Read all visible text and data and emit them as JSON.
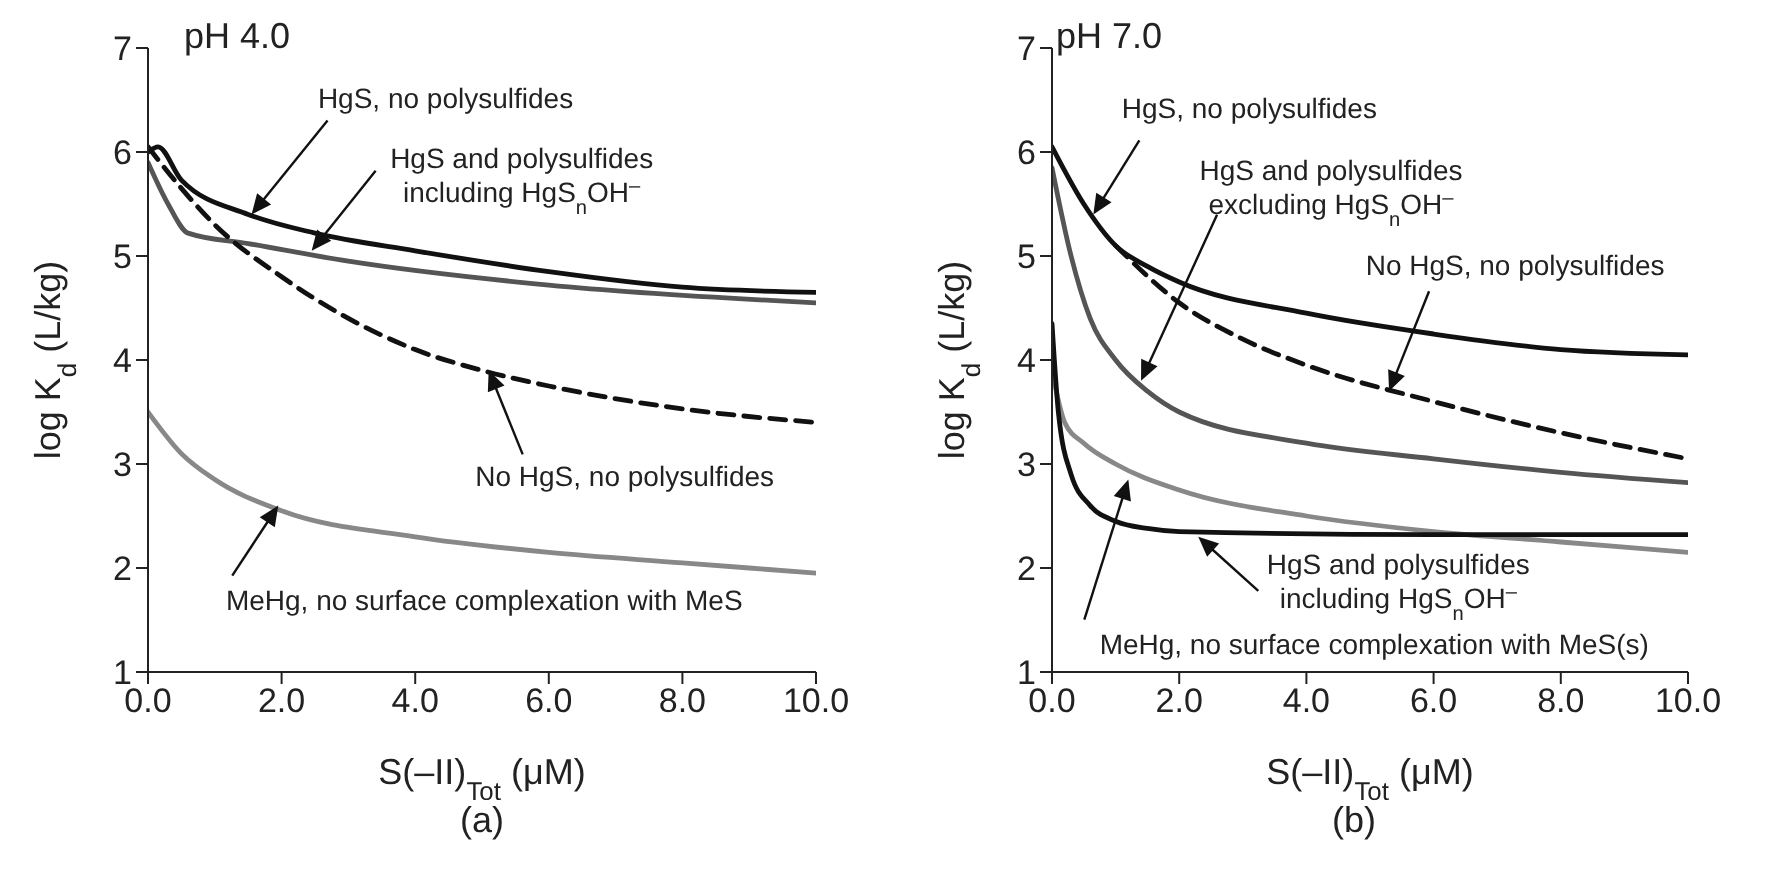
{
  "chart_data": [
    {
      "type": "line",
      "title": "pH 4.0",
      "xlabel": "S(–II)$_{Tot}$ (μM)",
      "ylabel": "log K$_{d}$ (L/kg)",
      "xlim": [
        0,
        10
      ],
      "ylim": [
        1,
        7
      ],
      "xticks": [
        {
          "value": 0,
          "label": "0.0"
        },
        {
          "value": 2,
          "label": "2.0"
        },
        {
          "value": 4,
          "label": "4.0"
        },
        {
          "value": 6,
          "label": "6.0"
        },
        {
          "value": 8,
          "label": "8.0"
        },
        {
          "value": 10,
          "label": "10.0"
        }
      ],
      "yticks": [
        1,
        2,
        3,
        4,
        5,
        6,
        7
      ],
      "marker": "none",
      "series": [
        {
          "color": "#111111",
          "line_style": "solid",
          "x": [
            0,
            0.15,
            0.5,
            1.5,
            2.5,
            4,
            6,
            8,
            10
          ],
          "values": [
            6.0,
            6.05,
            5.73,
            5.4,
            5.22,
            5.05,
            4.85,
            4.7,
            4.65
          ]
        },
        {
          "color": "#555555",
          "line_style": "solid",
          "x": [
            0,
            0.3,
            0.6,
            1.5,
            3,
            6,
            10
          ],
          "values": [
            5.9,
            5.5,
            5.22,
            5.12,
            4.95,
            4.72,
            4.55
          ]
        },
        {
          "color": "#111111",
          "line_style": "dashed",
          "x": [
            0,
            0.5,
            1,
            2,
            3,
            4,
            5,
            6,
            8,
            10
          ],
          "values": [
            6.05,
            5.65,
            5.3,
            4.8,
            4.4,
            4.1,
            3.9,
            3.75,
            3.53,
            3.4
          ]
        },
        {
          "color": "#888888",
          "line_style": "solid",
          "x": [
            0,
            0.5,
            1,
            2,
            4,
            6,
            8,
            10
          ],
          "values": [
            3.5,
            3.1,
            2.85,
            2.55,
            2.3,
            2.15,
            2.05,
            1.95
          ]
        }
      ],
      "annotations": [
        {
          "text": "HgS, no polysulfides",
          "x": 1.55,
          "y": 5.4
        },
        {
          "text": "HgS and polysulfides\nincluding HgS$_{n}$OH$^{–}$",
          "x": 2.45,
          "y": 5.05
        },
        {
          "text": "No HgS, no polysulfides",
          "x": 5.1,
          "y": 3.9
        },
        {
          "text": "MeHg, no surface complexation with MeS",
          "x": 1.95,
          "y": 2.6
        },
        "(a)"
      ]
    },
    {
      "type": "line",
      "title": "pH 7.0",
      "xlabel": "S(–II)$_{Tot}$ (μM)",
      "ylabel": "log K$_{d}$ (L/kg)",
      "xlim": [
        0,
        10
      ],
      "ylim": [
        1,
        7
      ],
      "xticks": [
        {
          "value": 0,
          "label": "0.0"
        },
        {
          "value": 2,
          "label": "2.0"
        },
        {
          "value": 4,
          "label": "4.0"
        },
        {
          "value": 6,
          "label": "6.0"
        },
        {
          "value": 8,
          "label": "8.0"
        },
        {
          "value": 10,
          "label": "10.0"
        }
      ],
      "yticks": [
        1,
        2,
        3,
        4,
        5,
        6,
        7
      ],
      "marker": "none",
      "series": [
        {
          "color": "#111111",
          "line_style": "solid",
          "x": [
            0,
            0.5,
            1,
            1.5,
            2,
            4,
            6,
            8,
            10
          ],
          "values": [
            6.05,
            5.5,
            5.1,
            4.9,
            4.75,
            4.45,
            4.25,
            4.1,
            4.05
          ]
        },
        {
          "color": "#111111",
          "line_style": "dashed",
          "x": [
            1,
            2,
            3,
            4,
            6,
            8,
            10
          ],
          "values": [
            5.1,
            4.55,
            4.2,
            3.95,
            3.6,
            3.3,
            3.05
          ]
        },
        {
          "color": "#555555",
          "line_style": "solid",
          "x": [
            0,
            0.3,
            0.6,
            1,
            1.5,
            2,
            4,
            6,
            8,
            10
          ],
          "values": [
            5.85,
            5.0,
            4.4,
            4.0,
            3.7,
            3.5,
            3.2,
            3.05,
            2.92,
            2.82
          ]
        },
        {
          "color": "#888888",
          "line_style": "solid",
          "x": [
            0,
            0.2,
            0.5,
            1,
            2,
            4,
            6,
            8,
            10
          ],
          "values": [
            3.9,
            3.4,
            3.2,
            3.0,
            2.75,
            2.5,
            2.35,
            2.25,
            2.15
          ]
        },
        {
          "color": "#111111",
          "line_style": "solid",
          "x": [
            0,
            0.1,
            0.3,
            0.6,
            1,
            1.5,
            2,
            6,
            10
          ],
          "values": [
            4.35,
            3.5,
            2.9,
            2.6,
            2.45,
            2.38,
            2.35,
            2.32,
            2.32
          ]
        }
      ],
      "annotations": [
        {
          "text": "HgS, no polysulfides",
          "x": 0.65,
          "y": 5.4
        },
        {
          "text": "HgS and polysulfides\nexcluding HgS$_{n}$OH$^{–}$",
          "x": 1.4,
          "y": 3.8
        },
        {
          "text": "No HgS, no polysulfides",
          "x": 5.3,
          "y": 3.7
        },
        {
          "text": "HgS and polysulfides\nincluding HgS$_{n}$OH$^{–}$",
          "x": 2.3,
          "y": 2.3
        },
        {
          "text": "MeHg, no surface complexation with MeS(s)",
          "x": 1.2,
          "y": 2.85
        },
        "(b)"
      ]
    }
  ]
}
